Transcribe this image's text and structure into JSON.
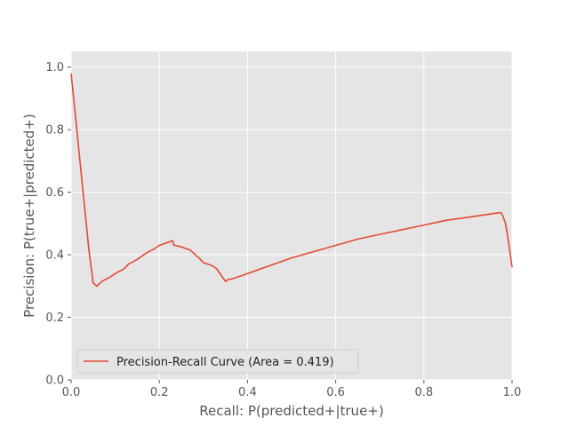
{
  "chart_data": {
    "type": "line",
    "xlabel": "Recall: P(predicted+|true+)",
    "ylabel": "Precision: P(true+|predicted+)",
    "xlim": [
      0,
      1
    ],
    "ylim": [
      0,
      1.05
    ],
    "x_ticks": [
      "0.0",
      "0.2",
      "0.4",
      "0.6",
      "0.8",
      "1.0"
    ],
    "y_ticks": [
      "0.0",
      "0.2",
      "0.4",
      "0.6",
      "0.8",
      "1.0"
    ],
    "grid": true,
    "legend_position": "lower-left",
    "line_color": "#e24a33",
    "background_color": "#e5e5e5",
    "series": [
      {
        "name": "Precision-Recall Curve  (Area = 0.419)",
        "x": [
          0.0,
          0.01,
          0.02,
          0.03,
          0.04,
          0.05,
          0.058,
          0.07,
          0.09,
          0.1,
          0.12,
          0.13,
          0.15,
          0.17,
          0.19,
          0.2,
          0.21,
          0.22,
          0.23,
          0.233,
          0.236,
          0.25,
          0.27,
          0.29,
          0.3,
          0.31,
          0.32,
          0.33,
          0.34,
          0.35,
          0.355,
          0.37,
          0.4,
          0.45,
          0.5,
          0.55,
          0.6,
          0.65,
          0.7,
          0.75,
          0.8,
          0.85,
          0.9,
          0.95,
          0.975,
          0.98,
          0.985,
          0.99,
          0.995,
          1.0
        ],
        "y": [
          0.98,
          0.84,
          0.7,
          0.56,
          0.42,
          0.31,
          0.3,
          0.315,
          0.33,
          0.34,
          0.355,
          0.37,
          0.385,
          0.405,
          0.42,
          0.43,
          0.435,
          0.44,
          0.445,
          0.43,
          0.43,
          0.425,
          0.415,
          0.39,
          0.375,
          0.37,
          0.365,
          0.355,
          0.335,
          0.315,
          0.32,
          0.325,
          0.34,
          0.365,
          0.39,
          0.41,
          0.43,
          0.45,
          0.465,
          0.48,
          0.495,
          0.51,
          0.52,
          0.53,
          0.535,
          0.52,
          0.5,
          0.46,
          0.41,
          0.36
        ]
      }
    ]
  }
}
